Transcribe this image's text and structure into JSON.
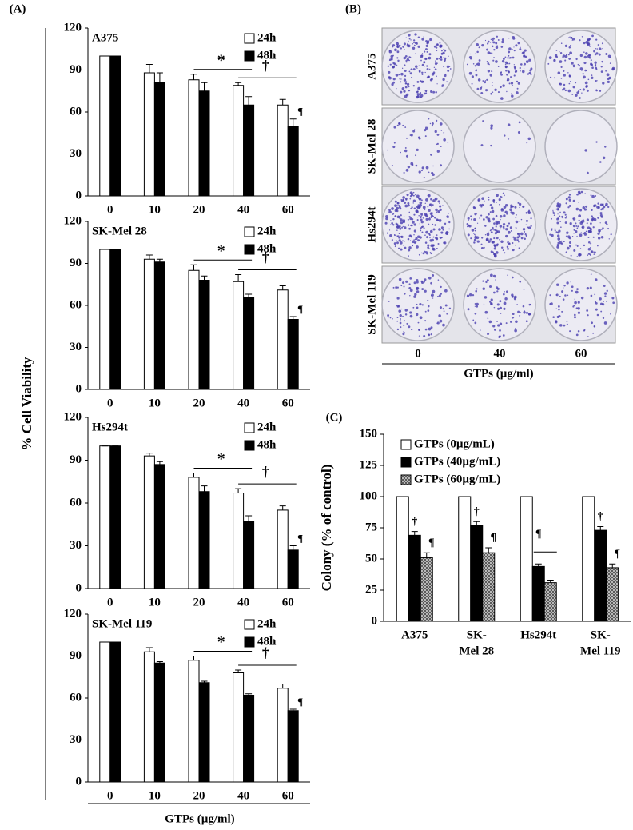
{
  "figure": {
    "panels": {
      "A": "(A)",
      "B": "(B)",
      "C": "(C)"
    },
    "ylabel": "% Cell Viability",
    "xlabel": "GTPs (µg/ml)"
  },
  "image_panel": {
    "rows": [
      "A375",
      "SK-Mel 28",
      "Hs294t",
      "SK-Mel 119"
    ],
    "columns": [
      "0",
      "40",
      "60"
    ],
    "xlabel": "GTPs (µg/ml)"
  },
  "chart_data": [
    {
      "type": "bar",
      "title": "A375",
      "categories": [
        "0",
        "10",
        "20",
        "40",
        "60"
      ],
      "series": [
        {
          "name": "24h",
          "color": "#ffffff",
          "values": [
            100,
            88,
            83,
            79,
            65
          ],
          "errors": [
            0,
            6,
            4,
            2,
            4
          ]
        },
        {
          "name": "48h",
          "color": "#000000",
          "values": [
            100,
            81,
            75,
            65,
            50
          ],
          "errors": [
            0,
            7,
            6,
            6,
            5
          ]
        }
      ],
      "ylim": [
        0,
        120
      ],
      "yticks": [
        0,
        30,
        60,
        90,
        120
      ],
      "legend": "upper right",
      "annotations": [
        "*",
        "†",
        "¶"
      ]
    },
    {
      "type": "bar",
      "title": "SK-Mel 28",
      "categories": [
        "0",
        "10",
        "20",
        "40",
        "60"
      ],
      "series": [
        {
          "name": "24h",
          "color": "#ffffff",
          "values": [
            100,
            93,
            85,
            77,
            71
          ],
          "errors": [
            0,
            3,
            4,
            5,
            3
          ]
        },
        {
          "name": "48h",
          "color": "#000000",
          "values": [
            100,
            91,
            78,
            66,
            50
          ],
          "errors": [
            0,
            2,
            3,
            2,
            2
          ]
        }
      ],
      "ylim": [
        0,
        120
      ],
      "yticks": [
        0,
        30,
        60,
        90,
        120
      ],
      "legend": "upper right",
      "annotations": [
        "*",
        "†",
        "¶"
      ]
    },
    {
      "type": "bar",
      "title": "Hs294t",
      "categories": [
        "0",
        "10",
        "20",
        "40",
        "60"
      ],
      "series": [
        {
          "name": "24h",
          "color": "#ffffff",
          "values": [
            100,
            93,
            78,
            67,
            55
          ],
          "errors": [
            0,
            2,
            3,
            3,
            3
          ]
        },
        {
          "name": "48h",
          "color": "#000000",
          "values": [
            100,
            87,
            68,
            47,
            27
          ],
          "errors": [
            0,
            2,
            4,
            4,
            3
          ]
        }
      ],
      "ylim": [
        0,
        120
      ],
      "yticks": [
        0,
        30,
        60,
        90,
        120
      ],
      "legend": "upper right",
      "annotations": [
        "*",
        "†",
        "¶"
      ]
    },
    {
      "type": "bar",
      "title": "SK-Mel 119",
      "categories": [
        "0",
        "10",
        "20",
        "40",
        "60"
      ],
      "series": [
        {
          "name": "24h",
          "color": "#ffffff",
          "values": [
            100,
            93,
            87,
            78,
            67
          ],
          "errors": [
            0,
            3,
            3,
            2,
            3
          ]
        },
        {
          "name": "48h",
          "color": "#000000",
          "values": [
            100,
            85,
            71,
            62,
            51
          ],
          "errors": [
            0,
            1,
            1,
            1,
            1
          ]
        }
      ],
      "ylim": [
        0,
        120
      ],
      "yticks": [
        0,
        30,
        60,
        90,
        120
      ],
      "legend": "upper right",
      "annotations": [
        "*",
        "†",
        "¶"
      ]
    },
    {
      "type": "bar",
      "ylabel": "Colony (% of control)",
      "categories": [
        [
          "A375"
        ],
        [
          "SK-",
          "Mel 28"
        ],
        [
          "Hs294t"
        ],
        [
          "SK-",
          "Mel 119"
        ]
      ],
      "series": [
        {
          "name": "GTPs (0µg/mL)",
          "color": "#ffffff",
          "values": [
            100,
            100,
            100,
            100
          ],
          "errors": [
            0,
            0,
            0,
            0
          ]
        },
        {
          "name": "GTPs (40µg/mL)",
          "color": "#000000",
          "values": [
            69,
            77,
            44,
            73
          ],
          "errors": [
            3,
            3,
            2,
            3
          ]
        },
        {
          "name": "GTPs (60µg/mL)",
          "color": "#cccccc",
          "hatch": true,
          "values": [
            51,
            55,
            31,
            43
          ],
          "errors": [
            4,
            4,
            2,
            3
          ]
        }
      ],
      "ylim": [
        0,
        150
      ],
      "yticks": [
        0,
        25,
        50,
        75,
        100,
        125,
        150
      ],
      "legend": "upper left",
      "annotations": [
        "†",
        "¶",
        "†",
        "¶",
        "¶",
        "†",
        "¶"
      ]
    }
  ]
}
